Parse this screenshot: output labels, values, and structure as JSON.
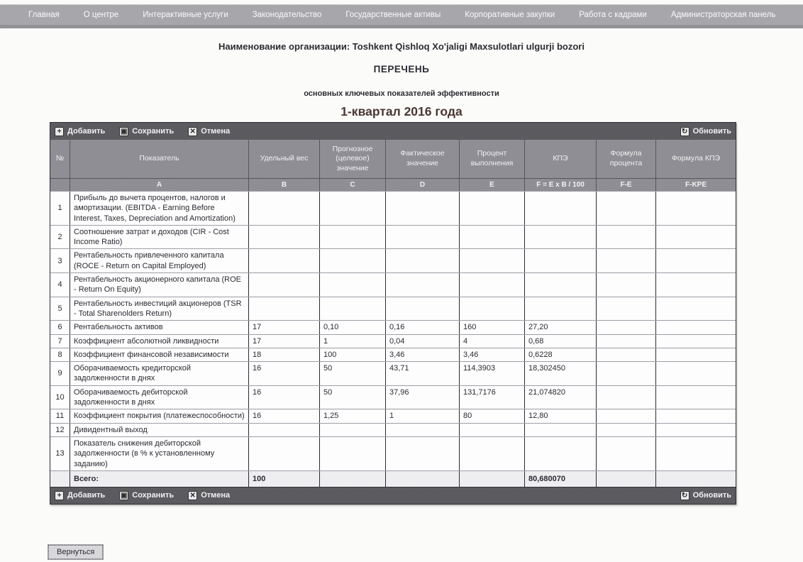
{
  "nav": {
    "items": [
      "Главная",
      "О центре",
      "Интерактивные услуги",
      "Законодательство",
      "Государственные активы",
      "Корпоративные закупки",
      "Работа с кадрами",
      "Администраторская панель"
    ]
  },
  "header": {
    "org_line": "Наименование организации: Toshkent Qishloq Xo'jaligi Maxsulotlari ulgurji bozori",
    "title": "ПЕРЕЧЕНЬ",
    "subtitle": "основных ключевых показателей эффективности",
    "period": "1-квартал 2016 года"
  },
  "toolbar": {
    "add": "Добавить",
    "save": "Сохранить",
    "cancel": "Отмена",
    "refresh": "Обновить"
  },
  "table": {
    "headers": [
      "№",
      "Показатель",
      "Удельный вес",
      "Прогнозное (целевое) значение",
      "Фактическое значение",
      "Процент выполнения",
      "КПЭ",
      "Формула процента",
      "Формула КПЭ"
    ],
    "letters": [
      "",
      "A",
      "B",
      "C",
      "D",
      "E",
      "F = E x B / 100",
      "F-E",
      "F-KPE"
    ],
    "rows": [
      {
        "num": "1",
        "name": "Прибыль до вычета процентов, налогов и амортизации. (EBITDA - Earning Before Interest, Taxes, Depreciation and Amortization)",
        "b": "",
        "c": "",
        "d": "",
        "e": "",
        "f": "",
        "fe": "",
        "fkpe": ""
      },
      {
        "num": "2",
        "name": "Соотношение затрат и доходов (CIR - Cost Income Ratio)",
        "b": "",
        "c": "",
        "d": "",
        "e": "",
        "f": "",
        "fe": "",
        "fkpe": ""
      },
      {
        "num": "3",
        "name": "Рентабельность привлеченного капитала (ROCE - Return on Capital Employed)",
        "b": "",
        "c": "",
        "d": "",
        "e": "",
        "f": "",
        "fe": "",
        "fkpe": ""
      },
      {
        "num": "4",
        "name": "Рентабельность акционерного капитала (ROE - Return On Equity)",
        "b": "",
        "c": "",
        "d": "",
        "e": "",
        "f": "",
        "fe": "",
        "fkpe": ""
      },
      {
        "num": "5",
        "name": "Рентабельность инвестиций акционеров (TSR - Total Sharenolders Return)",
        "b": "",
        "c": "",
        "d": "",
        "e": "",
        "f": "",
        "fe": "",
        "fkpe": ""
      },
      {
        "num": "6",
        "name": "Рентабельность активов",
        "b": "17",
        "c": "0,10",
        "d": "0,16",
        "e": "160",
        "f": "27,20",
        "fe": "",
        "fkpe": ""
      },
      {
        "num": "7",
        "name": "Коэффициент абсолютной ликвидности",
        "b": "17",
        "c": "1",
        "d": "0,04",
        "e": "4",
        "f": "0,68",
        "fe": "",
        "fkpe": ""
      },
      {
        "num": "8",
        "name": "Коэффициент финансовой независимости",
        "b": "18",
        "c": "100",
        "d": "3,46",
        "e": "3,46",
        "f": "0,6228",
        "fe": "",
        "fkpe": ""
      },
      {
        "num": "9",
        "name": "Оборачиваемость кредиторской задолженности в днях",
        "b": "16",
        "c": "50",
        "d": "43,71",
        "e": "114,3903",
        "f": "18,302450",
        "fe": "",
        "fkpe": ""
      },
      {
        "num": "10",
        "name": "Оборачиваемость дебиторской задолженности в днях",
        "b": "16",
        "c": "50",
        "d": "37,96",
        "e": "131,7176",
        "f": "21,074820",
        "fe": "",
        "fkpe": ""
      },
      {
        "num": "11",
        "name": "Коэффициент покрытия (платежеспособности)",
        "b": "16",
        "c": "1,25",
        "d": "1",
        "e": "80",
        "f": "12,80",
        "fe": "",
        "fkpe": ""
      },
      {
        "num": "12",
        "name": "Дивидентный выход",
        "b": "",
        "c": "",
        "d": "",
        "e": "",
        "f": "",
        "fe": "",
        "fkpe": ""
      },
      {
        "num": "13",
        "name": "Показатель снижения дебиторской задолженности (в % к установленному заданию)",
        "b": "",
        "c": "",
        "d": "",
        "e": "",
        "f": "",
        "fe": "",
        "fkpe": ""
      }
    ],
    "total": {
      "label": "Всего:",
      "b": "100",
      "f": "80,680070"
    }
  },
  "footer": {
    "back": "Вернуться"
  },
  "icons": {
    "add": "+",
    "save": "▣",
    "cancel": "✕",
    "refresh": "↻"
  },
  "colors": {
    "period_text": "#4a3633",
    "toolbar": "#5b5b5f",
    "header": "#8e8e94",
    "shaded_row": "#dadae0"
  }
}
